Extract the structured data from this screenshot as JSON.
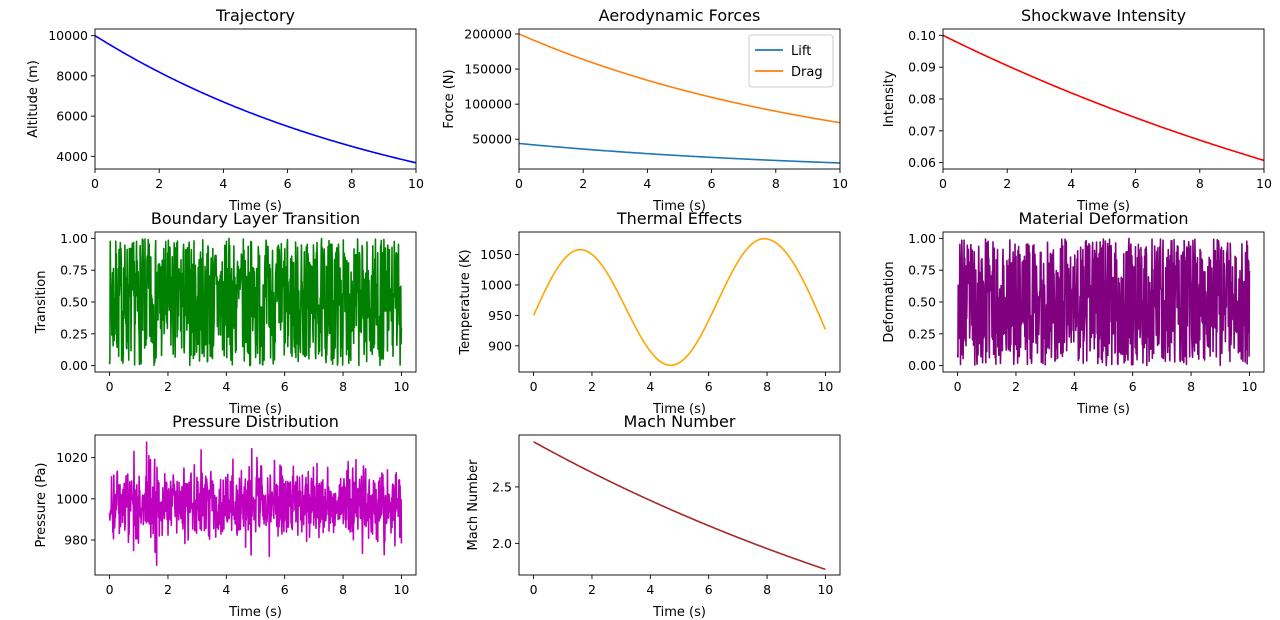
{
  "chart_data": [
    {
      "type": "line",
      "title": "Trajectory",
      "xlabel": "Time (s)",
      "ylabel": "Altitude (m)",
      "xlim": [
        0,
        10
      ],
      "ylim": [
        3370,
        10330
      ],
      "xticks": [
        0,
        2,
        4,
        6,
        8,
        10
      ],
      "yticks": [
        4000,
        6000,
        8000,
        10000
      ],
      "series": [
        {
          "kind": "exp",
          "color": "#0000ff",
          "x": [
            0,
            2,
            4,
            6,
            8,
            10
          ],
          "values": [
            10000,
            8187,
            6703,
            5488,
            4493,
            3679
          ]
        }
      ]
    },
    {
      "type": "line",
      "title": "Aerodynamic Forces",
      "xlabel": "Time (s)",
      "ylabel": "Force (N)",
      "xlim": [
        0,
        10
      ],
      "ylim": [
        7600,
        207100
      ],
      "xticks": [
        0,
        2,
        4,
        6,
        8,
        10
      ],
      "yticks": [
        50000,
        100000,
        150000,
        200000
      ],
      "legend": {
        "position": "upper right"
      },
      "series": [
        {
          "name": "Lift",
          "kind": "exp",
          "color": "#1f77b4",
          "x": [
            0,
            2,
            4,
            6,
            8,
            10
          ],
          "values": [
            44000,
            36000,
            29500,
            24100,
            19800,
            16200
          ]
        },
        {
          "name": "Drag",
          "kind": "exp",
          "color": "#ff7f0e",
          "x": [
            0,
            2,
            4,
            6,
            8,
            10
          ],
          "values": [
            200000,
            163700,
            134100,
            109800,
            89900,
            73600
          ]
        }
      ]
    },
    {
      "type": "line",
      "title": "Shockwave Intensity",
      "xlabel": "Time (s)",
      "ylabel": "Intensity",
      "xlim": [
        0,
        10
      ],
      "ylim": [
        0.058,
        0.102
      ],
      "xticks": [
        0,
        2,
        4,
        6,
        8,
        10
      ],
      "yticks": [
        0.06,
        0.07,
        0.08,
        0.09,
        0.1
      ],
      "ytick_labels": [
        "0.06",
        "0.07",
        "0.08",
        "0.09",
        "0.10"
      ],
      "series": [
        {
          "kind": "exp",
          "color": "#ff0000",
          "x": [
            0,
            2,
            4,
            6,
            8,
            10
          ],
          "values": [
            0.1,
            0.0905,
            0.0819,
            0.0741,
            0.067,
            0.0607
          ]
        }
      ]
    },
    {
      "type": "line",
      "title": "Boundary Layer Transition",
      "xlabel": "Time (s)",
      "ylabel": "Transition",
      "xlim": [
        -0.5,
        10.5
      ],
      "ylim": [
        -0.05,
        1.05
      ],
      "xticks": [
        0,
        2,
        4,
        6,
        8,
        10
      ],
      "yticks": [
        0,
        0.25,
        0.5,
        0.75,
        1.0
      ],
      "ytick_labels": [
        "0.00",
        "0.25",
        "0.50",
        "0.75",
        "1.00"
      ],
      "series": [
        {
          "kind": "noise",
          "color": "#008000",
          "x": [
            0,
            10
          ],
          "values": [
            0,
            1
          ],
          "noise": {
            "mode": "uniform",
            "min": 0.0,
            "max": 1.0,
            "points": 900,
            "seed": 7
          }
        }
      ]
    },
    {
      "type": "line",
      "title": "Thermal Effects",
      "xlabel": "Time (s)",
      "ylabel": "Temperature (K)",
      "xlim": [
        -0.5,
        10.5
      ],
      "ylim": [
        857,
        1087
      ],
      "xticks": [
        0,
        2,
        4,
        6,
        8,
        10
      ],
      "yticks": [
        900,
        950,
        1000,
        1050
      ],
      "series": [
        {
          "kind": "sine",
          "color": "#ffa500",
          "x": [
            0,
            1.6,
            4.7,
            7.9,
            10
          ],
          "values": [
            950,
            1058,
            868,
            1076,
            927
          ]
        }
      ]
    },
    {
      "type": "line",
      "title": "Material Deformation",
      "xlabel": "Time (s)",
      "ylabel": "Deformation",
      "xlim": [
        -0.5,
        10.5
      ],
      "ylim": [
        -0.05,
        1.05
      ],
      "xticks": [
        0,
        2,
        4,
        6,
        8,
        10
      ],
      "yticks": [
        0,
        0.25,
        0.5,
        0.75,
        1.0
      ],
      "ytick_labels": [
        "0.00",
        "0.25",
        "0.50",
        "0.75",
        "1.00"
      ],
      "series": [
        {
          "kind": "noise",
          "color": "#800080",
          "x": [
            0,
            10
          ],
          "values": [
            0,
            1
          ],
          "noise": {
            "mode": "uniform",
            "min": 0.0,
            "max": 1.0,
            "points": 900,
            "seed": 23
          }
        }
      ]
    },
    {
      "type": "line",
      "title": "Pressure Distribution",
      "xlabel": "Time (s)",
      "ylabel": "Pressure (Pa)",
      "xlim": [
        -0.5,
        10.5
      ],
      "ylim": [
        963,
        1031
      ],
      "xticks": [
        0,
        2,
        4,
        6,
        8,
        10
      ],
      "yticks": [
        980,
        1000,
        1020
      ],
      "series": [
        {
          "kind": "noise",
          "color": "#bf00bf",
          "x": [
            0,
            10
          ],
          "values": [
            998,
            998
          ],
          "noise": {
            "mode": "normal",
            "mean": 998,
            "std": 9,
            "min": 966,
            "max": 1028,
            "points": 900,
            "seed": 41
          }
        }
      ]
    },
    {
      "type": "line",
      "title": "Mach Number",
      "xlabel": "Time (s)",
      "ylabel": "Mach Number",
      "xlim": [
        -0.5,
        10.5
      ],
      "ylim": [
        1.72,
        2.96
      ],
      "xticks": [
        0,
        2,
        4,
        6,
        8,
        10
      ],
      "yticks": [
        2.0,
        2.5
      ],
      "ytick_labels": [
        "2.0",
        "2.5"
      ],
      "series": [
        {
          "kind": "exp",
          "color": "#a52a2a",
          "x": [
            0,
            2,
            4,
            6,
            8,
            10
          ],
          "values": [
            2.9,
            2.63,
            2.38,
            2.15,
            1.95,
            1.77
          ]
        }
      ]
    }
  ]
}
